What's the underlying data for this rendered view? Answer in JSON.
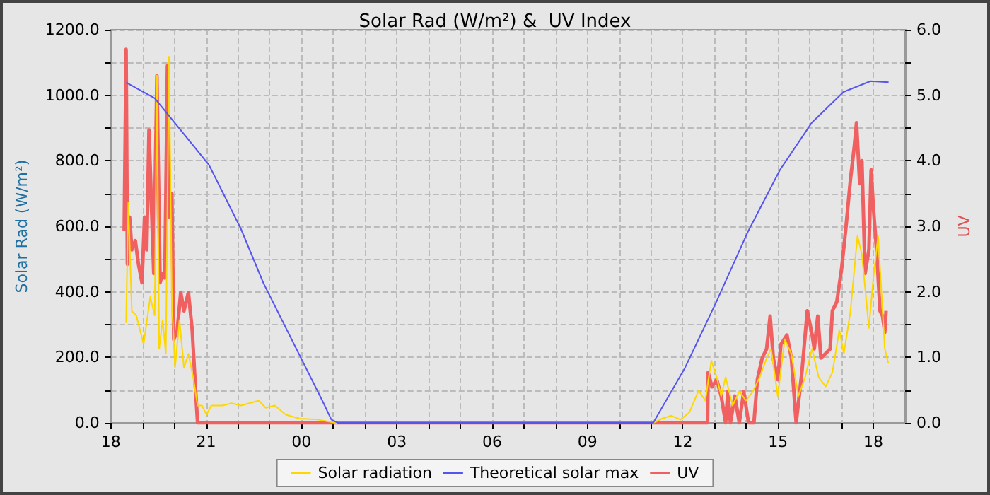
{
  "chart_data": {
    "type": "line",
    "title": "Solar Rad (W/m²) &  UV Index",
    "ylabel": "Solar Rad (W/m²)",
    "y2label": "UV",
    "xlim": [
      18,
      43
    ],
    "xticks": [
      {
        "value": 18,
        "label": "18"
      },
      {
        "value": 19,
        "label": null
      },
      {
        "value": 20,
        "label": null
      },
      {
        "value": 21,
        "label": "21"
      },
      {
        "value": 22,
        "label": null
      },
      {
        "value": 23,
        "label": null
      },
      {
        "value": 24,
        "label": "00"
      },
      {
        "value": 25,
        "label": null
      },
      {
        "value": 26,
        "label": null
      },
      {
        "value": 27,
        "label": "03"
      },
      {
        "value": 28,
        "label": null
      },
      {
        "value": 29,
        "label": null
      },
      {
        "value": 30,
        "label": "06"
      },
      {
        "value": 31,
        "label": null
      },
      {
        "value": 32,
        "label": null
      },
      {
        "value": 33,
        "label": "09"
      },
      {
        "value": 34,
        "label": null
      },
      {
        "value": 35,
        "label": null
      },
      {
        "value": 36,
        "label": "12"
      },
      {
        "value": 37,
        "label": null
      },
      {
        "value": 38,
        "label": null
      },
      {
        "value": 39,
        "label": "15"
      },
      {
        "value": 40,
        "label": null
      },
      {
        "value": 41,
        "label": null
      },
      {
        "value": 42,
        "label": "18"
      }
    ],
    "ylim": [
      0,
      1200
    ],
    "yticks": [
      {
        "value": 0,
        "label": "0.0"
      },
      {
        "value": 100,
        "label": null
      },
      {
        "value": 200,
        "label": "200.0"
      },
      {
        "value": 300,
        "label": null
      },
      {
        "value": 400,
        "label": "400.0"
      },
      {
        "value": 500,
        "label": null
      },
      {
        "value": 600,
        "label": "600.0"
      },
      {
        "value": 700,
        "label": null
      },
      {
        "value": 800,
        "label": "800.0"
      },
      {
        "value": 900,
        "label": null
      },
      {
        "value": 1000,
        "label": "1000.0"
      },
      {
        "value": 1100,
        "label": null
      },
      {
        "value": 1200,
        "label": "1200.0"
      }
    ],
    "y2lim": [
      0,
      6
    ],
    "y2ticks": [
      {
        "value": 0,
        "label": "0.0"
      },
      {
        "value": 0.5,
        "label": null
      },
      {
        "value": 1,
        "label": "1.0"
      },
      {
        "value": 1.5,
        "label": null
      },
      {
        "value": 2,
        "label": "2.0"
      },
      {
        "value": 2.5,
        "label": null
      },
      {
        "value": 3,
        "label": "3.0"
      },
      {
        "value": 3.5,
        "label": null
      },
      {
        "value": 4,
        "label": "4.0"
      },
      {
        "value": 4.5,
        "label": null
      },
      {
        "value": 5,
        "label": "5.0"
      },
      {
        "value": 5.5,
        "label": null
      },
      {
        "value": 6,
        "label": "6.0"
      }
    ],
    "grid": true,
    "legend": "bottom",
    "marker": "none",
    "line_style": "solid",
    "series": [
      {
        "name": "Solar radiation",
        "color": "#ffd700",
        "x": [
          18.48,
          18.55,
          18.66,
          18.8,
          19.03,
          19.24,
          19.38,
          19.45,
          19.52,
          19.63,
          19.73,
          19.83,
          19.92,
          20.02,
          20.16,
          20.3,
          20.44,
          20.59,
          20.73,
          20.87,
          21.01,
          21.16,
          21.51,
          21.8,
          22.09,
          22.66,
          22.87,
          23.16,
          23.51,
          23.94,
          24.51,
          25.08,
          35.07,
          35.35,
          35.64,
          35.93,
          36.21,
          36.5,
          36.71,
          36.9,
          37.07,
          37.21,
          37.35,
          37.57,
          37.78,
          37.99,
          38.21,
          38.42,
          38.64,
          38.78,
          38.99,
          39.21,
          39.42,
          39.64,
          39.85,
          40.07,
          40.28,
          40.5,
          40.71,
          40.93,
          41.07,
          41.28,
          41.5,
          41.64,
          41.86,
          42.0,
          42.15,
          42.29,
          42.36,
          42.47
        ],
        "values": [
          305,
          672,
          341,
          328,
          240,
          384,
          328,
          1060,
          226,
          314,
          211,
          1118,
          370,
          168,
          314,
          168,
          211,
          139,
          53,
          53,
          25,
          53,
          53,
          60,
          53,
          68,
          46,
          53,
          25,
          13,
          10,
          0,
          0,
          13,
          22,
          10,
          32,
          99,
          68,
          190,
          139,
          82,
          139,
          53,
          96,
          68,
          96,
          139,
          197,
          226,
          82,
          255,
          211,
          82,
          139,
          226,
          139,
          111,
          154,
          284,
          211,
          341,
          571,
          514,
          290,
          442,
          571,
          341,
          226,
          183
        ]
      },
      {
        "name": "Theoretical solar max",
        "color": "#5555ee",
        "x": [
          18.48,
          19.38,
          21.09,
          22.09,
          22.8,
          24.01,
          24.65,
          24.94,
          25.15,
          35.07,
          36.07,
          37.06,
          38.06,
          39.06,
          40.06,
          41.06,
          41.91,
          42.48
        ],
        "values": [
          1039,
          991,
          787,
          593,
          427,
          193,
          69,
          10,
          0,
          0,
          168,
          370,
          585,
          772,
          916,
          1010,
          1043,
          1040
        ]
      },
      {
        "name": "UV",
        "color": "#f06060",
        "axis": "y2",
        "x": [
          18.42,
          18.48,
          18.52,
          18.59,
          18.66,
          18.77,
          18.87,
          18.98,
          19.06,
          19.13,
          19.2,
          19.28,
          19.35,
          19.45,
          19.55,
          19.63,
          19.7,
          19.78,
          19.85,
          19.92,
          19.98,
          20.09,
          20.2,
          20.3,
          20.44,
          20.56,
          20.66,
          20.73,
          36.78,
          36.8,
          36.92,
          37.07,
          37.21,
          37.35,
          37.42,
          37.5,
          37.64,
          37.78,
          37.92,
          38.07,
          38.24,
          38.35,
          38.5,
          38.64,
          38.75,
          38.85,
          38.99,
          39.09,
          39.28,
          39.42,
          39.57,
          39.75,
          39.92,
          40.07,
          40.14,
          40.25,
          40.35,
          40.5,
          40.64,
          40.71,
          40.85,
          41.0,
          41.14,
          41.28,
          41.4,
          41.47,
          41.57,
          41.64,
          41.74,
          41.86,
          41.93,
          42.0,
          42.11,
          42.21,
          42.29,
          42.36,
          42.4
        ],
        "values": [
          2.93,
          5.7,
          2.42,
          3.14,
          2.64,
          2.78,
          2.42,
          2.14,
          3.14,
          2.64,
          4.47,
          3.29,
          2.28,
          5.3,
          2.14,
          2.28,
          2.21,
          5.45,
          3.14,
          3.5,
          1.27,
          1.42,
          1.99,
          1.71,
          1.99,
          1.42,
          0.55,
          0,
          0,
          0.77,
          0.55,
          0.66,
          0.41,
          0,
          0.48,
          0,
          0.41,
          0,
          0.48,
          0,
          0,
          0.66,
          0.99,
          1.13,
          1.63,
          0.99,
          0.66,
          1.2,
          1.34,
          0.99,
          0,
          0.77,
          1.71,
          1.35,
          1.13,
          1.63,
          0.99,
          1.06,
          1.13,
          1.71,
          1.85,
          2.35,
          3.0,
          3.72,
          4.22,
          4.58,
          3.65,
          4.0,
          2.28,
          2.64,
          3.86,
          3.29,
          2.57,
          1.71,
          1.63,
          1.38,
          1.71
        ]
      }
    ]
  }
}
